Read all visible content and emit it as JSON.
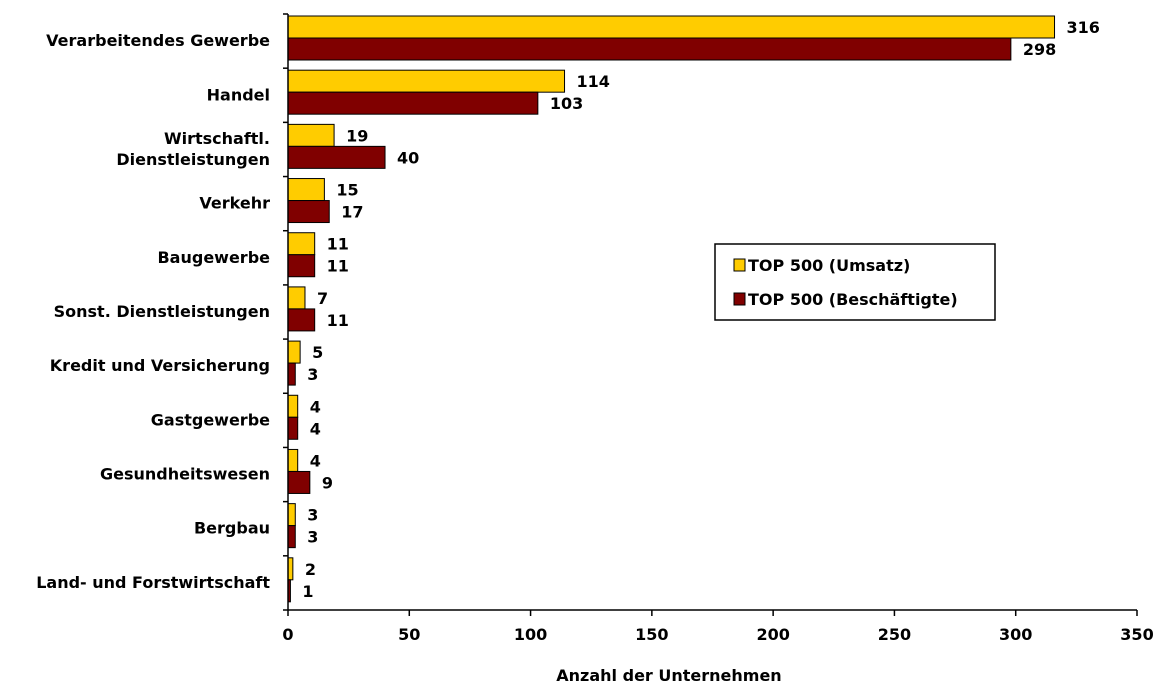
{
  "chart_data": {
    "type": "bar",
    "orientation": "horizontal",
    "categories": [
      [
        "Verarbeitendes Gewerbe"
      ],
      [
        "Handel"
      ],
      [
        "Wirtschaftl.",
        "Dienstleistungen"
      ],
      [
        "Verkehr"
      ],
      [
        "Baugewerbe"
      ],
      [
        "Sonst. Dienstleistungen"
      ],
      [
        "Kredit und Versicherung"
      ],
      [
        "Gastgewerbe"
      ],
      [
        "Gesundheitswesen"
      ],
      [
        "Bergbau"
      ],
      [
        "Land- und Forstwirtschaft"
      ]
    ],
    "series": [
      {
        "name": "TOP 500 (Umsatz)",
        "color": "#FFCC00",
        "values": [
          316,
          114,
          19,
          15,
          11,
          7,
          5,
          4,
          4,
          3,
          2
        ]
      },
      {
        "name": "TOP 500 (Beschäftigte)",
        "color": "#800000",
        "values": [
          298,
          103,
          40,
          17,
          11,
          11,
          3,
          4,
          9,
          3,
          1
        ]
      }
    ],
    "xlabel": "Anzahl der Unternehmen",
    "ylabel": "",
    "xlim": [
      0,
      350
    ],
    "xticks": [
      0,
      50,
      100,
      150,
      200,
      250,
      300,
      350
    ],
    "grid": false,
    "legend": "center-right"
  }
}
